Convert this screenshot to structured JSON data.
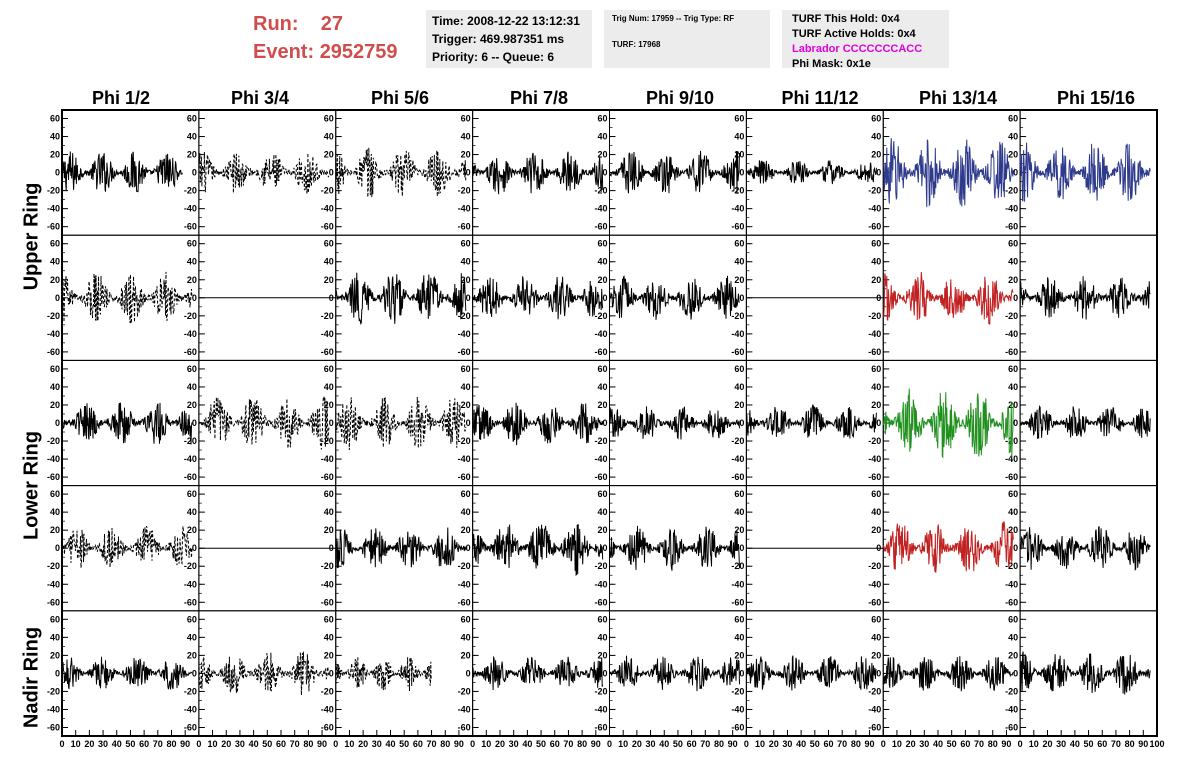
{
  "header": {
    "run_label": "Run:",
    "run_value": "27",
    "event_label": "Event:",
    "event_value": "2952759",
    "time": "Time: 2008-12-22 13:12:31",
    "trigger": "Trigger: 469.987351 ms",
    "priority_queue": "Priority: 6 -- Queue: 6",
    "trig_num_type": "Trig Num: 17959 -- Trig Type: RF",
    "turf": "TURF: 17968",
    "turf_this_hold": "TURF This Hold: 0x4",
    "turf_active_holds": "TURF Active Holds: 0x4",
    "labrador": "Labrador CCCCCCCACC",
    "phi_mask": "Phi Mask: 0x1e"
  },
  "columns": [
    "Phi 1/2",
    "Phi 3/4",
    "Phi 5/6",
    "Phi 7/8",
    "Phi 9/10",
    "Phi 11/12",
    "Phi 13/14",
    "Phi 15/16"
  ],
  "rows": [
    "Upper Ring",
    "Lower Ring",
    "Nadir Ring"
  ],
  "chart_data": {
    "type": "line",
    "title": "",
    "xlabel": "",
    "ylabel": "",
    "xlim": [
      0,
      100
    ],
    "ylim": [
      -65,
      65
    ],
    "y_ticks": [
      -60,
      -40,
      -20,
      0,
      20,
      40,
      60
    ],
    "x_ticks": [
      0,
      10,
      20,
      30,
      40,
      50,
      60,
      70,
      80,
      90,
      100
    ],
    "grid": false,
    "note_values": "waveform samples are noise-like traces; amplitudes estimated",
    "series": [
      {
        "row": 0,
        "col": 0,
        "style": "solid",
        "color": "#000000",
        "amplitude": 25,
        "x_end": 88
      },
      {
        "row": 0,
        "col": 1,
        "style": "dashed",
        "color": "#000000",
        "amplitude": 25,
        "x_end": 95
      },
      {
        "row": 0,
        "col": 2,
        "style": "dashed",
        "color": "#000000",
        "amplitude": 30,
        "x_end": 95
      },
      {
        "row": 0,
        "col": 3,
        "style": "solid",
        "color": "#000000",
        "amplitude": 25,
        "x_end": 95
      },
      {
        "row": 0,
        "col": 4,
        "style": "solid",
        "color": "#000000",
        "amplitude": 25,
        "x_end": 95
      },
      {
        "row": 0,
        "col": 5,
        "style": "solid",
        "color": "#000000",
        "amplitude": 15,
        "x_end": 95
      },
      {
        "row": 0,
        "col": 6,
        "style": "solid",
        "color": "#2e3a8c",
        "amplitude": 40,
        "x_end": 95
      },
      {
        "row": 0,
        "col": 7,
        "style": "solid",
        "color": "#2e3a8c",
        "amplitude": 35,
        "x_end": 95
      },
      {
        "row": 1,
        "col": 0,
        "style": "dashed",
        "color": "#000000",
        "amplitude": 30,
        "x_end": 95
      },
      {
        "row": 1,
        "col": 1,
        "style": "flat",
        "color": "#000000",
        "amplitude": 0,
        "x_end": 100
      },
      {
        "row": 1,
        "col": 2,
        "style": "solid",
        "color": "#000000",
        "amplitude": 30,
        "x_end": 95
      },
      {
        "row": 1,
        "col": 3,
        "style": "solid",
        "color": "#000000",
        "amplitude": 25,
        "x_end": 95
      },
      {
        "row": 1,
        "col": 4,
        "style": "solid",
        "color": "#000000",
        "amplitude": 25,
        "x_end": 95
      },
      {
        "row": 1,
        "col": 5,
        "style": "flat",
        "color": "#000000",
        "amplitude": 0,
        "x_end": 100
      },
      {
        "row": 1,
        "col": 6,
        "style": "solid",
        "color": "#c02020",
        "amplitude": 30,
        "x_end": 95
      },
      {
        "row": 1,
        "col": 7,
        "style": "solid",
        "color": "#000000",
        "amplitude": 25,
        "x_end": 95
      },
      {
        "row": 2,
        "col": 0,
        "style": "solid",
        "color": "#000000",
        "amplitude": 25,
        "x_end": 95
      },
      {
        "row": 2,
        "col": 1,
        "style": "dashed",
        "color": "#000000",
        "amplitude": 30,
        "x_end": 95
      },
      {
        "row": 2,
        "col": 2,
        "style": "dashed",
        "color": "#000000",
        "amplitude": 30,
        "x_end": 95
      },
      {
        "row": 2,
        "col": 3,
        "style": "solid",
        "color": "#000000",
        "amplitude": 25,
        "x_end": 95
      },
      {
        "row": 2,
        "col": 4,
        "style": "solid",
        "color": "#000000",
        "amplitude": 20,
        "x_end": 95
      },
      {
        "row": 2,
        "col": 5,
        "style": "solid",
        "color": "#000000",
        "amplitude": 20,
        "x_end": 95
      },
      {
        "row": 2,
        "col": 6,
        "style": "solid",
        "color": "#20901e",
        "amplitude": 40,
        "x_end": 95
      },
      {
        "row": 2,
        "col": 7,
        "style": "solid",
        "color": "#000000",
        "amplitude": 20,
        "x_end": 95
      },
      {
        "row": 3,
        "col": 0,
        "style": "dashed",
        "color": "#000000",
        "amplitude": 25,
        "x_end": 95
      },
      {
        "row": 3,
        "col": 1,
        "style": "flat",
        "color": "#000000",
        "amplitude": 0,
        "x_end": 100
      },
      {
        "row": 3,
        "col": 2,
        "style": "solid",
        "color": "#000000",
        "amplitude": 25,
        "x_end": 95
      },
      {
        "row": 3,
        "col": 3,
        "style": "solid",
        "color": "#000000",
        "amplitude": 30,
        "x_end": 95
      },
      {
        "row": 3,
        "col": 4,
        "style": "solid",
        "color": "#000000",
        "amplitude": 25,
        "x_end": 95
      },
      {
        "row": 3,
        "col": 5,
        "style": "flat",
        "color": "#000000",
        "amplitude": 0,
        "x_end": 100
      },
      {
        "row": 3,
        "col": 6,
        "style": "solid",
        "color": "#c02020",
        "amplitude": 30,
        "x_end": 95
      },
      {
        "row": 3,
        "col": 7,
        "style": "solid",
        "color": "#000000",
        "amplitude": 25,
        "x_end": 95
      },
      {
        "row": 4,
        "col": 0,
        "style": "solid",
        "color": "#000000",
        "amplitude": 20,
        "x_end": 95
      },
      {
        "row": 4,
        "col": 1,
        "style": "dashed",
        "color": "#000000",
        "amplitude": 25,
        "x_end": 95
      },
      {
        "row": 4,
        "col": 2,
        "style": "dashed",
        "color": "#000000",
        "amplitude": 20,
        "x_end": 70
      },
      {
        "row": 4,
        "col": 3,
        "style": "solid",
        "color": "#000000",
        "amplitude": 20,
        "x_end": 95
      },
      {
        "row": 4,
        "col": 4,
        "style": "solid",
        "color": "#000000",
        "amplitude": 20,
        "x_end": 95
      },
      {
        "row": 4,
        "col": 5,
        "style": "solid",
        "color": "#000000",
        "amplitude": 20,
        "x_end": 95
      },
      {
        "row": 4,
        "col": 6,
        "style": "solid",
        "color": "#000000",
        "amplitude": 20,
        "x_end": 95
      },
      {
        "row": 4,
        "col": 7,
        "style": "solid",
        "color": "#000000",
        "amplitude": 25,
        "x_end": 95
      }
    ]
  }
}
